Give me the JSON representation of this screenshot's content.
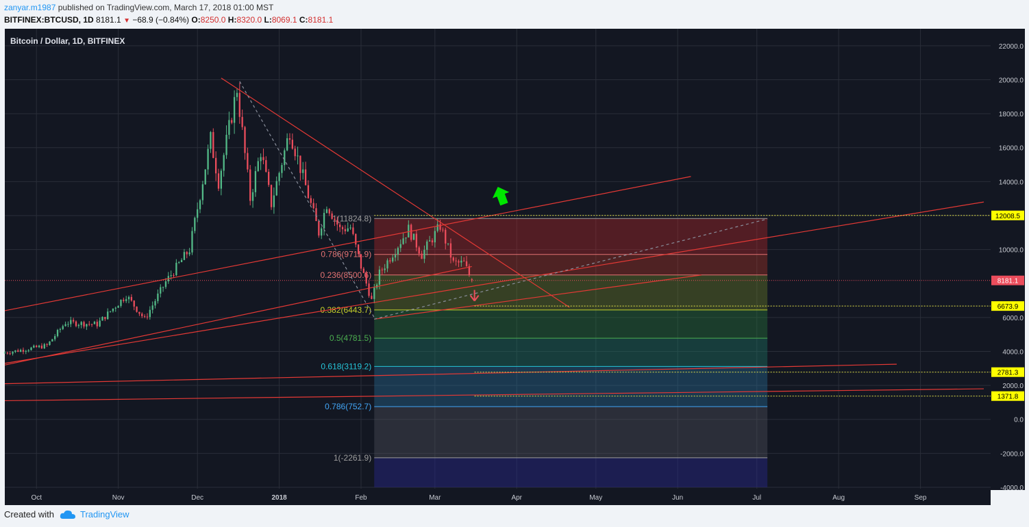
{
  "header": {
    "author": "zanyar.m1987",
    "published_text": "published on TradingView.com, March 17, 2018 01:00 MST",
    "symbol_interval": "BITFINEX:BTCUSD, 1D",
    "last": "8181.1",
    "change": "−68.9 (−0.84%)",
    "o_label": "O:",
    "o": "8250.0",
    "h_label": "H:",
    "h": "8320.0",
    "l_label": "L:",
    "l": "8069.1",
    "c_label": "C:",
    "c": "8181.1"
  },
  "footer": {
    "created_with": "Created with",
    "brand": "TradingView"
  },
  "colors": {
    "background": "#131722",
    "grid": "#2a2e39",
    "up": "#53b987",
    "down": "#eb4d5c",
    "trend": "#e53935",
    "fib_line": "#e6e64a",
    "arrow_up": "#00e600"
  },
  "chart_data": {
    "type": "candlestick",
    "title": "Bitcoin / Dollar, 1D, BITFINEX",
    "x_ticks": [
      "Oct",
      "Nov",
      "Dec",
      "2018",
      "Feb",
      "Mar",
      "Apr",
      "May",
      "Jun",
      "Jul",
      "Aug",
      "Sep"
    ],
    "y_ticks": [
      "22000.0",
      "20000.0",
      "18000.0",
      "16000.0",
      "14000.0",
      "12000.0",
      "10000.0",
      "6000.0",
      "4000.0",
      "2000.0",
      "0.0",
      "-2000.0",
      "-4000.0"
    ],
    "ylim": [
      -4000,
      23000
    ],
    "x_range": [
      "2017-09-19",
      "2018-09-25"
    ],
    "price_series_shape": [
      [
        "2017-09-19",
        3900
      ],
      [
        "2017-09-27",
        4100
      ],
      [
        "2017-10-06",
        4350
      ],
      [
        "2017-10-13",
        5700
      ],
      [
        "2017-10-25",
        5600
      ],
      [
        "2017-11-05",
        7300
      ],
      [
        "2017-11-12",
        5900
      ],
      [
        "2017-11-20",
        8100
      ],
      [
        "2017-11-29",
        10000
      ],
      [
        "2017-12-07",
        16500
      ],
      [
        "2017-12-10",
        14000
      ],
      [
        "2017-12-17",
        19500
      ],
      [
        "2017-12-22",
        13000
      ],
      [
        "2017-12-26",
        15800
      ],
      [
        "2017-12-30",
        12700
      ],
      [
        "2018-01-06",
        17000
      ],
      [
        "2018-01-17",
        11000
      ],
      [
        "2018-01-20",
        12700
      ],
      [
        "2018-01-25",
        11200
      ],
      [
        "2018-01-29",
        11300
      ],
      [
        "2018-02-02",
        9000
      ],
      [
        "2018-02-06",
        7000
      ],
      [
        "2018-02-09",
        8600
      ],
      [
        "2018-02-20",
        11200
      ],
      [
        "2018-02-25",
        9700
      ],
      [
        "2018-03-04",
        11400
      ],
      [
        "2018-03-09",
        9200
      ],
      [
        "2018-03-13",
        9200
      ],
      [
        "2018-03-16",
        8181
      ]
    ],
    "last_price": "8181.1",
    "fibonacci": [
      {
        "label": "1(11824.8)",
        "value": 11824.8
      },
      {
        "label": "0.786(9711.9)",
        "value": 9711.9
      },
      {
        "label": "0.236(8500.6)",
        "value": 8500.6
      },
      {
        "label": "0.382(6443.7)",
        "value": 6443.7
      },
      {
        "label": "0.5(4781.5)",
        "value": 4781.5
      },
      {
        "label": "0.618(3119.2)",
        "value": 3119.2
      },
      {
        "label": "0.786(752.7)",
        "value": 752.7
      },
      {
        "label": "1(-2261.9)",
        "value": -2261.9
      }
    ],
    "horizontal_levels": [
      {
        "label": "12008.5",
        "value": 12008.5
      },
      {
        "label": "6673.9",
        "value": 6673.9
      },
      {
        "label": "2781.3",
        "value": 2781.3
      },
      {
        "label": "1371.8",
        "value": 1371.8
      }
    ]
  }
}
